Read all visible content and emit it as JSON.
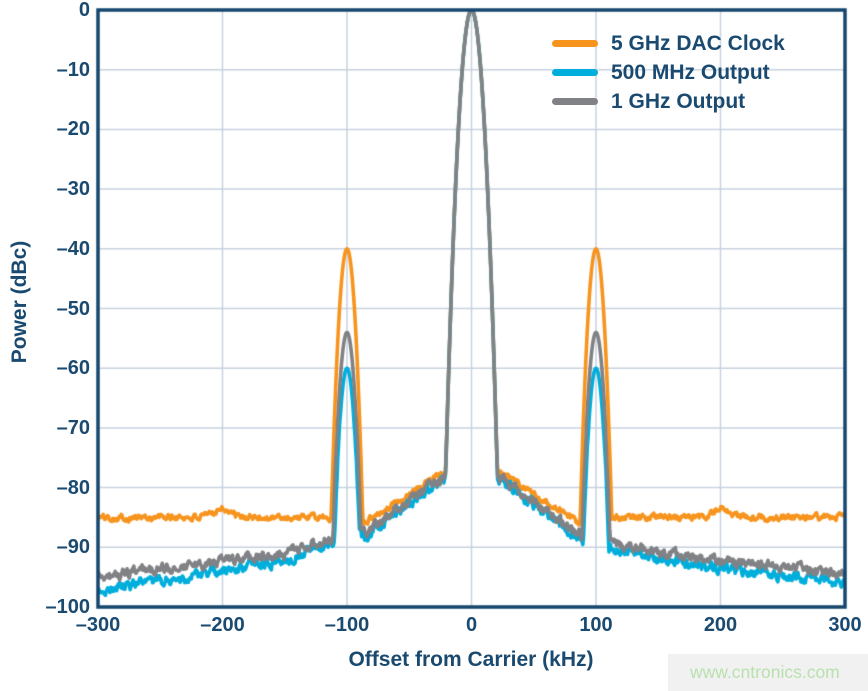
{
  "watermark": {
    "text": "www.cntronics.com"
  },
  "chart_data": {
    "type": "line",
    "title": "",
    "xlabel": "Offset from Carrier (kHz)",
    "ylabel": "Power (dBc)",
    "xlim": [
      -300,
      300
    ],
    "ylim": [
      -100,
      0
    ],
    "xticks": [
      -300,
      -200,
      -100,
      0,
      100,
      200,
      300
    ],
    "xtick_labels": [
      "–300",
      "–200",
      "–100",
      "0",
      "100",
      "200",
      "300"
    ],
    "yticks": [
      0,
      -10,
      -20,
      -30,
      -40,
      -50,
      -60,
      -70,
      -80,
      -90,
      -100
    ],
    "ytick_labels": [
      "0",
      "–10",
      "–20",
      "–30",
      "–40",
      "–50",
      "–60",
      "–70",
      "–80",
      "–90",
      "–100"
    ],
    "grid": true,
    "legend_position": "top-right",
    "colors": {
      "axis": "#16466e",
      "grid": "#c7d2df",
      "text": "#1a4a70"
    },
    "peak_summary": {
      "carrier": {
        "x": 0,
        "y_dBc": 0
      },
      "spurs_at_kHz": [
        -100,
        100
      ],
      "spur_levels_dBc": {
        "5 GHz DAC Clock": -40,
        "1 GHz Output": -54,
        "500 MHz Output": -60
      },
      "noise_floor_dBc": {
        "5 GHz DAC Clock": -85,
        "1 GHz Output": -95,
        "500 MHz Output": -97
      }
    },
    "series": [
      {
        "name": "5 GHz DAC Clock",
        "color": "#f7941e",
        "seed": 101,
        "noise": 0.8,
        "peaks": [
          {
            "x": -100,
            "y": -40,
            "k": 0.28
          },
          {
            "x": 0,
            "y": 0,
            "k": 0.18
          },
          {
            "x": 100,
            "y": -40,
            "k": 0.28
          }
        ],
        "baseline": [
          [
            -300,
            -85
          ],
          [
            -215,
            -85
          ],
          [
            -200,
            -83.2
          ],
          [
            -188,
            -85
          ],
          [
            -120,
            -85
          ],
          [
            -85,
            -85.6
          ],
          [
            -60,
            -82.5
          ],
          [
            -40,
            -79.8
          ],
          [
            -25,
            -77.4
          ],
          [
            -18,
            -76.6
          ],
          [
            18,
            -76.6
          ],
          [
            25,
            -77.4
          ],
          [
            40,
            -79.8
          ],
          [
            60,
            -82.5
          ],
          [
            85,
            -85.8
          ],
          [
            120,
            -85
          ],
          [
            188,
            -85
          ],
          [
            200,
            -83.2
          ],
          [
            215,
            -85
          ],
          [
            300,
            -85
          ]
        ]
      },
      {
        "name": "500 MHz Output",
        "color": "#00aedc",
        "seed": 202,
        "noise": 1.25,
        "peaks": [
          {
            "x": -100,
            "y": -60,
            "k": 0.28
          },
          {
            "x": 0,
            "y": 0,
            "k": 0.18
          },
          {
            "x": 100,
            "y": -60,
            "k": 0.28
          }
        ],
        "baseline": [
          [
            -300,
            -97.3
          ],
          [
            -200,
            -94
          ],
          [
            -150,
            -92.3
          ],
          [
            -110,
            -88.8
          ],
          [
            -85,
            -88.1
          ],
          [
            -60,
            -84.2
          ],
          [
            -40,
            -81.2
          ],
          [
            -25,
            -79.1
          ],
          [
            -18,
            -78.3
          ],
          [
            18,
            -78.3
          ],
          [
            25,
            -79.1
          ],
          [
            40,
            -81.2
          ],
          [
            60,
            -84.2
          ],
          [
            85,
            -88.3
          ],
          [
            112,
            -90
          ],
          [
            150,
            -92
          ],
          [
            220,
            -94
          ],
          [
            300,
            -96
          ]
        ]
      },
      {
        "name": "1 GHz Output",
        "color": "#818285",
        "seed": 303,
        "noise": 1.2,
        "peaks": [
          {
            "x": -100,
            "y": -54,
            "k": 0.27
          },
          {
            "x": 0,
            "y": 0,
            "k": 0.18
          },
          {
            "x": 100,
            "y": -54,
            "k": 0.27
          }
        ],
        "baseline": [
          [
            -300,
            -95
          ],
          [
            -200,
            -92.5
          ],
          [
            -150,
            -91
          ],
          [
            -110,
            -88.3
          ],
          [
            -85,
            -87.6
          ],
          [
            -60,
            -83.8
          ],
          [
            -40,
            -80.8
          ],
          [
            -25,
            -78.7
          ],
          [
            -18,
            -77.9
          ],
          [
            18,
            -77.9
          ],
          [
            25,
            -78.7
          ],
          [
            40,
            -80.8
          ],
          [
            60,
            -83.8
          ],
          [
            85,
            -87.8
          ],
          [
            112,
            -89.3
          ],
          [
            150,
            -90.8
          ],
          [
            220,
            -92.8
          ],
          [
            300,
            -94.3
          ]
        ]
      }
    ]
  }
}
